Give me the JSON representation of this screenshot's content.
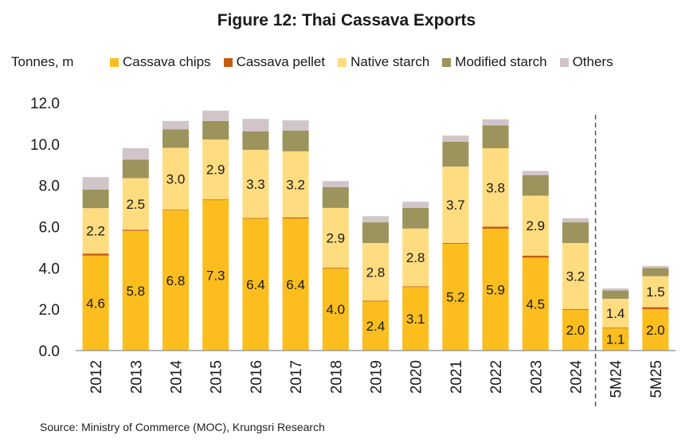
{
  "title": "Figure 12: Thai Cassava Exports",
  "y_unit": "Tonnes, m",
  "source": "Source: Ministry of Commerce (MOC), Krungsri Research",
  "chart_data": {
    "type": "bar",
    "stacked": true,
    "categories": [
      "2012",
      "2013",
      "2014",
      "2015",
      "2016",
      "2017",
      "2018",
      "2019",
      "2020",
      "2021",
      "2022",
      "2023",
      "2024",
      "5M24",
      "5M25"
    ],
    "ylim": [
      0,
      12
    ],
    "yticks": [
      "0.0",
      "2.0",
      "4.0",
      "6.0",
      "8.0",
      "10.0",
      "12.0"
    ],
    "ytick_values": [
      0,
      2,
      4,
      6,
      8,
      10,
      12
    ],
    "legend_position": "top",
    "divider_after_category": "2024",
    "series": [
      {
        "name": "Cassava chips",
        "color": "#FBBE1E",
        "values": [
          4.6,
          5.8,
          6.8,
          7.3,
          6.4,
          6.4,
          4.0,
          2.4,
          3.1,
          5.2,
          5.9,
          4.5,
          2.0,
          1.1,
          2.0
        ],
        "labels": [
          "4.6",
          "5.8",
          "6.8",
          "7.3",
          "6.4",
          "6.4",
          "4.0",
          "2.4",
          "3.1",
          "5.2",
          "5.9",
          "4.5",
          "2.0",
          "1.1",
          "2.0"
        ]
      },
      {
        "name": "Cassava pellet",
        "color": "#C55A11",
        "values": [
          0.1,
          0.05,
          0.02,
          0.02,
          0.02,
          0.05,
          0.01,
          0.01,
          0.01,
          0.01,
          0.1,
          0.1,
          0.01,
          0.01,
          0.1
        ],
        "labels": []
      },
      {
        "name": "Native starch",
        "color": "#FFDC7F",
        "values": [
          2.2,
          2.5,
          3.0,
          2.9,
          3.3,
          3.2,
          2.9,
          2.8,
          2.8,
          3.7,
          3.8,
          2.9,
          3.2,
          1.4,
          1.5
        ],
        "labels": [
          "2.2",
          "2.5",
          "3.0",
          "2.9",
          "3.3",
          "3.2",
          "2.9",
          "2.8",
          "2.8",
          "3.7",
          "3.8",
          "2.9",
          "3.2",
          "1.4",
          "1.5"
        ]
      },
      {
        "name": "Modified starch",
        "color": "#9C945C",
        "values": [
          0.9,
          0.9,
          0.9,
          0.9,
          0.9,
          1.0,
          1.0,
          1.0,
          1.0,
          1.2,
          1.1,
          1.0,
          1.0,
          0.4,
          0.4
        ],
        "labels": []
      },
      {
        "name": "Others",
        "color": "#D1C5C9",
        "values": [
          0.6,
          0.55,
          0.4,
          0.5,
          0.6,
          0.5,
          0.3,
          0.3,
          0.3,
          0.3,
          0.3,
          0.2,
          0.2,
          0.1,
          0.1
        ],
        "labels": []
      }
    ]
  }
}
